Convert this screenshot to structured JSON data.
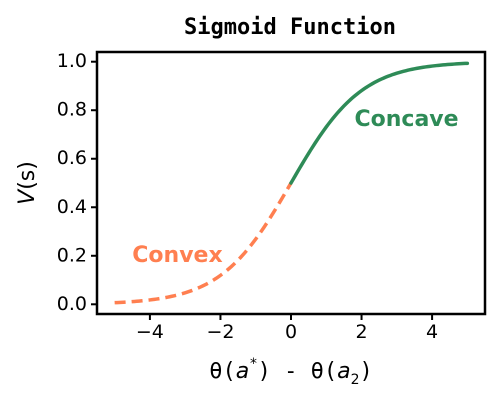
{
  "chart_data": {
    "type": "line",
    "title": "Sigmoid Function",
    "xlabel": {
      "prefix1": "θ(",
      "var1": "a",
      "sup1": "*",
      "mid": ") - θ(",
      "var2": "a",
      "sub2": "2",
      "suffix": ")"
    },
    "ylabel": {
      "var": "V",
      "arg": "(s)"
    },
    "xlim": [
      -5.5,
      5.5
    ],
    "ylim": [
      -0.04,
      1.04
    ],
    "xticks": [
      -4,
      -2,
      0,
      2,
      4
    ],
    "xtick_labels": [
      "−4",
      "−2",
      "0",
      "2",
      "4"
    ],
    "yticks": [
      0.0,
      0.2,
      0.4,
      0.6,
      0.8,
      1.0
    ],
    "ytick_labels": [
      "0.0",
      "0.2",
      "0.4",
      "0.6",
      "0.8",
      "1.0"
    ],
    "grid": false,
    "function": "1/(1+exp(-x))",
    "series": [
      {
        "name": "Convex",
        "style": "dashed",
        "color": "#ff7f50",
        "x_range": [
          -5,
          0
        ],
        "x": [
          -5,
          -4.5,
          -4,
          -3.5,
          -3,
          -2.5,
          -2,
          -1.5,
          -1,
          -0.5,
          0
        ],
        "y": [
          0.0067,
          0.011,
          0.018,
          0.0293,
          0.0474,
          0.0759,
          0.1192,
          0.1824,
          0.2689,
          0.3775,
          0.5
        ]
      },
      {
        "name": "Concave",
        "style": "solid",
        "color": "#2e8b57",
        "x_range": [
          0,
          5
        ],
        "x": [
          0,
          0.5,
          1,
          1.5,
          2,
          2.5,
          3,
          3.5,
          4,
          4.5,
          5
        ],
        "y": [
          0.5,
          0.6225,
          0.7311,
          0.8176,
          0.8808,
          0.9241,
          0.9526,
          0.9707,
          0.982,
          0.989,
          0.9933
        ]
      }
    ],
    "annotations": [
      {
        "text": "Convex",
        "x": -4.5,
        "y": 0.2,
        "color": "#ff7f50"
      },
      {
        "text": "Concave",
        "x": 1.8,
        "y": 0.76,
        "color": "#2e8b57"
      }
    ]
  }
}
